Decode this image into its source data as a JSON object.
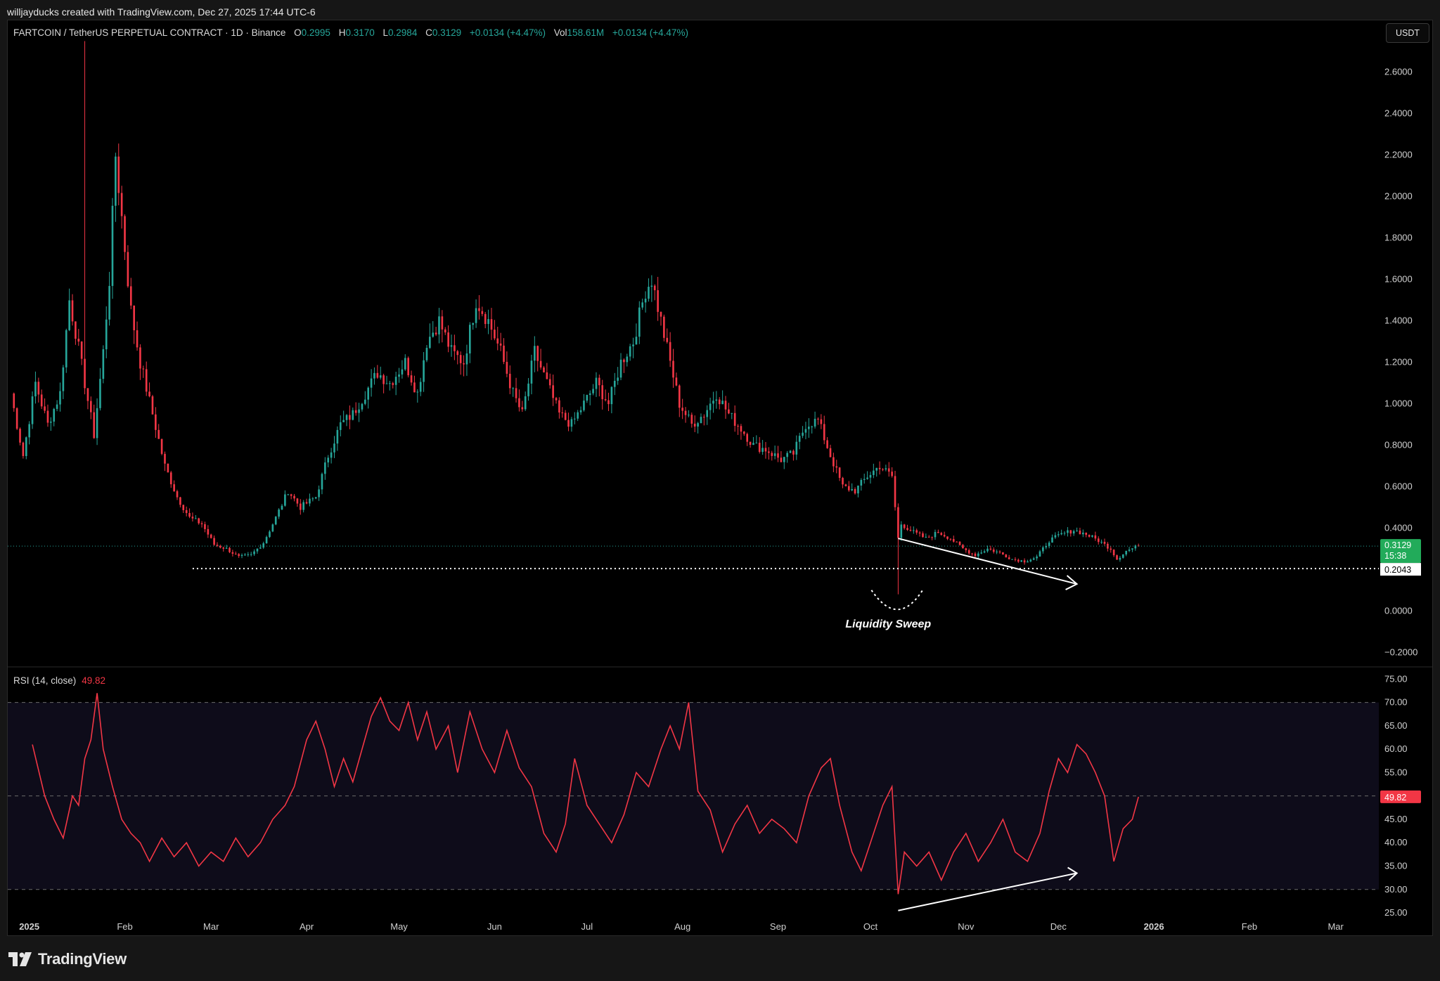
{
  "credit": "willjayducks created with TradingView.com, Dec 27, 2025 17:44 UTC-6",
  "symbol": {
    "pair": "FARTCOIN / TetherUS PERPETUAL CONTRACT · 1D · Binance",
    "o_label": "O",
    "o_value": "0.2995",
    "h_label": "H",
    "h_value": "0.3170",
    "l_label": "L",
    "l_value": "0.2984",
    "c_label": "C",
    "c_value": "0.3129",
    "change": "+0.0134 (+4.47%)",
    "vol_label": "Vol",
    "vol_value": "158.61M",
    "vol_change": "+0.0134 (+4.47%)"
  },
  "currency_button": "USDT",
  "price_axis_labels": [
    "2.6000",
    "2.4000",
    "2.2000",
    "2.0000",
    "1.8000",
    "1.6000",
    "1.4000",
    "1.2000",
    "1.0000",
    "0.8000",
    "0.6000",
    "0.4000",
    "0.2000",
    "0.0000",
    "−0.2000"
  ],
  "last_price_tag": {
    "price": "0.3129",
    "countdown": "15:38"
  },
  "level_tag": "0.2043",
  "annotation": "Liquidity Sweep",
  "rsi": {
    "legend": "RSI (14, close)",
    "value": "49.82",
    "axis_labels": [
      "75.00",
      "70.00",
      "65.00",
      "60.00",
      "55.00",
      "50.00",
      "45.00",
      "40.00",
      "35.00",
      "30.00",
      "25.00"
    ]
  },
  "time_axis_labels": [
    "2025",
    "Feb",
    "Mar",
    "Apr",
    "May",
    "Jun",
    "Jul",
    "Aug",
    "Sep",
    "Oct",
    "Nov",
    "Dec",
    "2026",
    "Feb",
    "Mar"
  ],
  "brand": "TradingView",
  "colors": {
    "up": "#26a69a",
    "down": "#f23645",
    "rsi_line": "#f23645",
    "background": "#000000"
  },
  "chart_data": [
    {
      "type": "candlestick",
      "title": "",
      "y_axis": "price (USDT)",
      "ylim": [
        -0.27,
        2.85
      ],
      "x_range": [
        "2024-12-25",
        "2026-03-15"
      ],
      "series": [
        {
          "name": "",
          "points": [
            [
              "2024-12-26",
              1.05
            ],
            [
              "2024-12-30",
              0.75
            ],
            [
              "2025-01-03",
              1.1
            ],
            [
              "2025-01-07",
              0.9
            ],
            [
              "2025-01-11",
              1.05
            ],
            [
              "2025-01-14",
              1.5
            ],
            [
              "2025-01-16",
              1.35
            ],
            [
              "2025-01-19",
              1.1
            ],
            [
              "2025-01-22",
              0.85
            ],
            [
              "2025-01-25",
              1.25
            ],
            [
              "2025-01-27",
              1.6
            ],
            [
              "2025-01-29",
              2.2
            ],
            [
              "2025-01-31",
              1.9
            ],
            [
              "2025-02-03",
              1.45
            ],
            [
              "2025-02-06",
              1.2
            ],
            [
              "2025-02-10",
              0.95
            ],
            [
              "2025-02-14",
              0.7
            ],
            [
              "2025-02-18",
              0.55
            ],
            [
              "2025-02-22",
              0.45
            ],
            [
              "2025-02-26",
              0.42
            ],
            [
              "2025-03-02",
              0.32
            ],
            [
              "2025-03-06",
              0.3
            ],
            [
              "2025-03-10",
              0.26
            ],
            [
              "2025-03-14",
              0.27
            ],
            [
              "2025-03-18",
              0.33
            ],
            [
              "2025-03-22",
              0.45
            ],
            [
              "2025-03-26",
              0.58
            ],
            [
              "2025-03-30",
              0.5
            ],
            [
              "2025-04-04",
              0.55
            ],
            [
              "2025-04-08",
              0.75
            ],
            [
              "2025-04-12",
              0.9
            ],
            [
              "2025-04-16",
              0.95
            ],
            [
              "2025-04-20",
              1.05
            ],
            [
              "2025-04-24",
              1.15
            ],
            [
              "2025-04-28",
              1.1
            ],
            [
              "2025-05-03",
              1.2
            ],
            [
              "2025-05-07",
              1.05
            ],
            [
              "2025-05-10",
              1.3
            ],
            [
              "2025-05-14",
              1.4
            ],
            [
              "2025-05-18",
              1.25
            ],
            [
              "2025-05-22",
              1.2
            ],
            [
              "2025-05-26",
              1.5
            ],
            [
              "2025-05-30",
              1.4
            ],
            [
              "2025-06-03",
              1.25
            ],
            [
              "2025-06-07",
              1.05
            ],
            [
              "2025-06-10",
              0.95
            ],
            [
              "2025-06-14",
              1.25
            ],
            [
              "2025-06-18",
              1.1
            ],
            [
              "2025-06-22",
              0.95
            ],
            [
              "2025-06-26",
              0.9
            ],
            [
              "2025-06-30",
              1.0
            ],
            [
              "2025-07-04",
              1.1
            ],
            [
              "2025-07-08",
              1.0
            ],
            [
              "2025-07-12",
              1.2
            ],
            [
              "2025-07-16",
              1.3
            ],
            [
              "2025-07-20",
              1.55
            ],
            [
              "2025-07-22",
              1.6
            ],
            [
              "2025-07-25",
              1.4
            ],
            [
              "2025-07-28",
              1.2
            ],
            [
              "2025-07-31",
              1.0
            ],
            [
              "2025-08-04",
              0.9
            ],
            [
              "2025-08-08",
              0.95
            ],
            [
              "2025-08-12",
              1.05
            ],
            [
              "2025-08-16",
              0.95
            ],
            [
              "2025-08-20",
              0.88
            ],
            [
              "2025-08-24",
              0.8
            ],
            [
              "2025-08-28",
              0.78
            ],
            [
              "2025-09-02",
              0.73
            ],
            [
              "2025-09-06",
              0.76
            ],
            [
              "2025-09-10",
              0.9
            ],
            [
              "2025-09-14",
              0.92
            ],
            [
              "2025-09-18",
              0.75
            ],
            [
              "2025-09-22",
              0.6
            ],
            [
              "2025-09-26",
              0.58
            ],
            [
              "2025-09-30",
              0.65
            ],
            [
              "2025-10-04",
              0.7
            ],
            [
              "2025-10-08",
              0.65
            ],
            [
              "2025-10-10",
              0.35
            ],
            [
              "2025-10-11",
              0.42
            ],
            [
              "2025-10-15",
              0.38
            ],
            [
              "2025-10-19",
              0.35
            ],
            [
              "2025-10-23",
              0.38
            ],
            [
              "2025-10-27",
              0.35
            ],
            [
              "2025-10-31",
              0.3
            ],
            [
              "2025-11-04",
              0.27
            ],
            [
              "2025-11-08",
              0.3
            ],
            [
              "2025-11-12",
              0.28
            ],
            [
              "2025-11-16",
              0.25
            ],
            [
              "2025-11-20",
              0.24
            ],
            [
              "2025-11-24",
              0.26
            ],
            [
              "2025-11-28",
              0.34
            ],
            [
              "2025-12-02",
              0.37
            ],
            [
              "2025-12-06",
              0.39
            ],
            [
              "2025-12-10",
              0.37
            ],
            [
              "2025-12-14",
              0.34
            ],
            [
              "2025-12-18",
              0.3
            ],
            [
              "2025-12-20",
              0.25
            ],
            [
              "2025-12-23",
              0.29
            ],
            [
              "2025-12-27",
              0.3129
            ]
          ]
        }
      ],
      "extremes": {
        "high": [
          "2025-01-19",
          2.75
        ],
        "sweep_low": [
          "2025-10-10",
          0.08
        ]
      },
      "support_level": 0.2043,
      "last_price": 0.3129
    },
    {
      "type": "line",
      "title": "",
      "ylim": [
        22,
        77
      ],
      "bands": [
        30,
        50,
        70
      ],
      "series": [
        {
          "name": "",
          "points": [
            [
              "2025-01-02",
              61
            ],
            [
              "2025-01-06",
              50
            ],
            [
              "2025-01-09",
              45
            ],
            [
              "2025-01-12",
              41
            ],
            [
              "2025-01-15",
              50
            ],
            [
              "2025-01-17",
              48
            ],
            [
              "2025-01-19",
              58
            ],
            [
              "2025-01-21",
              62
            ],
            [
              "2025-01-23",
              72
            ],
            [
              "2025-01-25",
              60
            ],
            [
              "2025-01-28",
              52
            ],
            [
              "2025-01-31",
              45
            ],
            [
              "2025-02-03",
              42
            ],
            [
              "2025-02-06",
              40
            ],
            [
              "2025-02-09",
              36
            ],
            [
              "2025-02-13",
              41
            ],
            [
              "2025-02-17",
              37
            ],
            [
              "2025-02-21",
              40
            ],
            [
              "2025-02-25",
              35
            ],
            [
              "2025-03-01",
              38
            ],
            [
              "2025-03-05",
              36
            ],
            [
              "2025-03-09",
              41
            ],
            [
              "2025-03-13",
              37
            ],
            [
              "2025-03-17",
              40
            ],
            [
              "2025-03-21",
              45
            ],
            [
              "2025-03-25",
              48
            ],
            [
              "2025-03-28",
              52
            ],
            [
              "2025-04-01",
              62
            ],
            [
              "2025-04-04",
              66
            ],
            [
              "2025-04-07",
              60
            ],
            [
              "2025-04-10",
              52
            ],
            [
              "2025-04-13",
              58
            ],
            [
              "2025-04-16",
              53
            ],
            [
              "2025-04-19",
              60
            ],
            [
              "2025-04-22",
              67
            ],
            [
              "2025-04-25",
              71
            ],
            [
              "2025-04-28",
              66
            ],
            [
              "2025-05-01",
              64
            ],
            [
              "2025-05-04",
              70
            ],
            [
              "2025-05-07",
              62
            ],
            [
              "2025-05-10",
              68
            ],
            [
              "2025-05-13",
              60
            ],
            [
              "2025-05-17",
              65
            ],
            [
              "2025-05-20",
              55
            ],
            [
              "2025-05-24",
              68
            ],
            [
              "2025-05-28",
              60
            ],
            [
              "2025-06-01",
              55
            ],
            [
              "2025-06-05",
              64
            ],
            [
              "2025-06-09",
              56
            ],
            [
              "2025-06-13",
              52
            ],
            [
              "2025-06-17",
              42
            ],
            [
              "2025-06-21",
              38
            ],
            [
              "2025-06-24",
              44
            ],
            [
              "2025-06-27",
              58
            ],
            [
              "2025-07-01",
              48
            ],
            [
              "2025-07-05",
              44
            ],
            [
              "2025-07-09",
              40
            ],
            [
              "2025-07-13",
              46
            ],
            [
              "2025-07-17",
              55
            ],
            [
              "2025-07-21",
              52
            ],
            [
              "2025-07-25",
              60
            ],
            [
              "2025-07-28",
              65
            ],
            [
              "2025-07-31",
              60
            ],
            [
              "2025-08-03",
              70
            ],
            [
              "2025-08-06",
              51
            ],
            [
              "2025-08-10",
              47
            ],
            [
              "2025-08-14",
              38
            ],
            [
              "2025-08-18",
              44
            ],
            [
              "2025-08-22",
              48
            ],
            [
              "2025-08-26",
              42
            ],
            [
              "2025-08-30",
              45
            ],
            [
              "2025-09-03",
              43
            ],
            [
              "2025-09-07",
              40
            ],
            [
              "2025-09-11",
              50
            ],
            [
              "2025-09-15",
              56
            ],
            [
              "2025-09-18",
              58
            ],
            [
              "2025-09-21",
              48
            ],
            [
              "2025-09-25",
              38
            ],
            [
              "2025-09-28",
              34
            ],
            [
              "2025-10-01",
              40
            ],
            [
              "2025-10-05",
              48
            ],
            [
              "2025-10-08",
              52
            ],
            [
              "2025-10-10",
              29
            ],
            [
              "2025-10-12",
              38
            ],
            [
              "2025-10-16",
              35
            ],
            [
              "2025-10-20",
              38
            ],
            [
              "2025-10-24",
              32
            ],
            [
              "2025-10-28",
              38
            ],
            [
              "2025-11-01",
              42
            ],
            [
              "2025-11-05",
              36
            ],
            [
              "2025-11-09",
              40
            ],
            [
              "2025-11-13",
              45
            ],
            [
              "2025-11-17",
              38
            ],
            [
              "2025-11-21",
              36
            ],
            [
              "2025-11-25",
              42
            ],
            [
              "2025-11-28",
              51
            ],
            [
              "2025-12-01",
              58
            ],
            [
              "2025-12-04",
              55
            ],
            [
              "2025-12-07",
              61
            ],
            [
              "2025-12-10",
              59
            ],
            [
              "2025-12-13",
              55
            ],
            [
              "2025-12-16",
              50
            ],
            [
              "2025-12-19",
              36
            ],
            [
              "2025-12-22",
              43
            ],
            [
              "2025-12-25",
              45
            ],
            [
              "2025-12-27",
              49.82
            ]
          ]
        }
      ]
    }
  ]
}
